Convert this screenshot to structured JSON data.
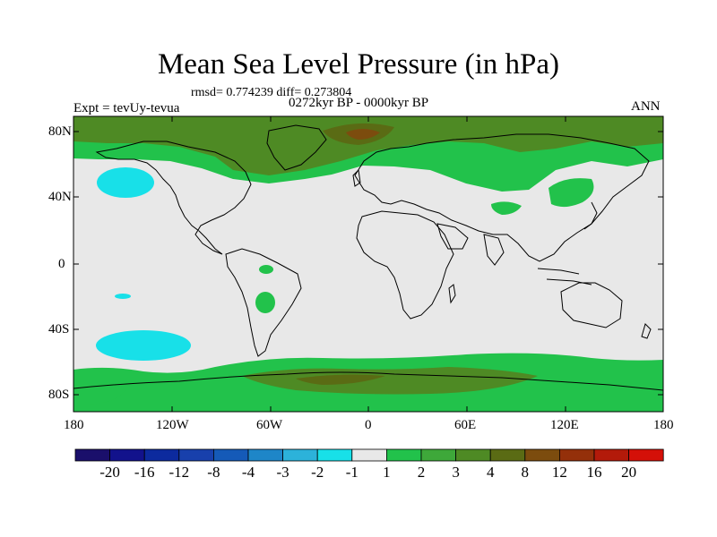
{
  "title": "Mean Sea Level Pressure (in hPa)",
  "stats": "rmsd= 0.774239 diff= 0.273804",
  "period": "0272kyr BP - 0000kyr BP",
  "expt": "Expt = tevUy-tevua",
  "season": "ANN",
  "lat_labels": [
    "80N",
    "40N",
    "0",
    "40S",
    "80S"
  ],
  "lon_labels": [
    "180",
    "120W",
    "60W",
    "0",
    "60E",
    "120E",
    "180"
  ],
  "colorbar": {
    "labels": [
      "-20",
      "-16",
      "-12",
      "-8",
      "-4",
      "-3",
      "-2",
      "-1",
      "1",
      "2",
      "3",
      "4",
      "8",
      "12",
      "16",
      "20"
    ],
    "colors": [
      "#1a0f6b",
      "#12128c",
      "#0c2a9e",
      "#1840ac",
      "#155ab8",
      "#1e86c8",
      "#2cb2da",
      "#18e0e8",
      "#e8e8e8",
      "#22c24b",
      "#3ea83a",
      "#4e8a24",
      "#5a6b14",
      "#7c4c0e",
      "#94300a",
      "#b31a0a",
      "#d41008"
    ]
  },
  "colors": {
    "background_field": "#e8e8e8",
    "coastline": "#000000"
  }
}
